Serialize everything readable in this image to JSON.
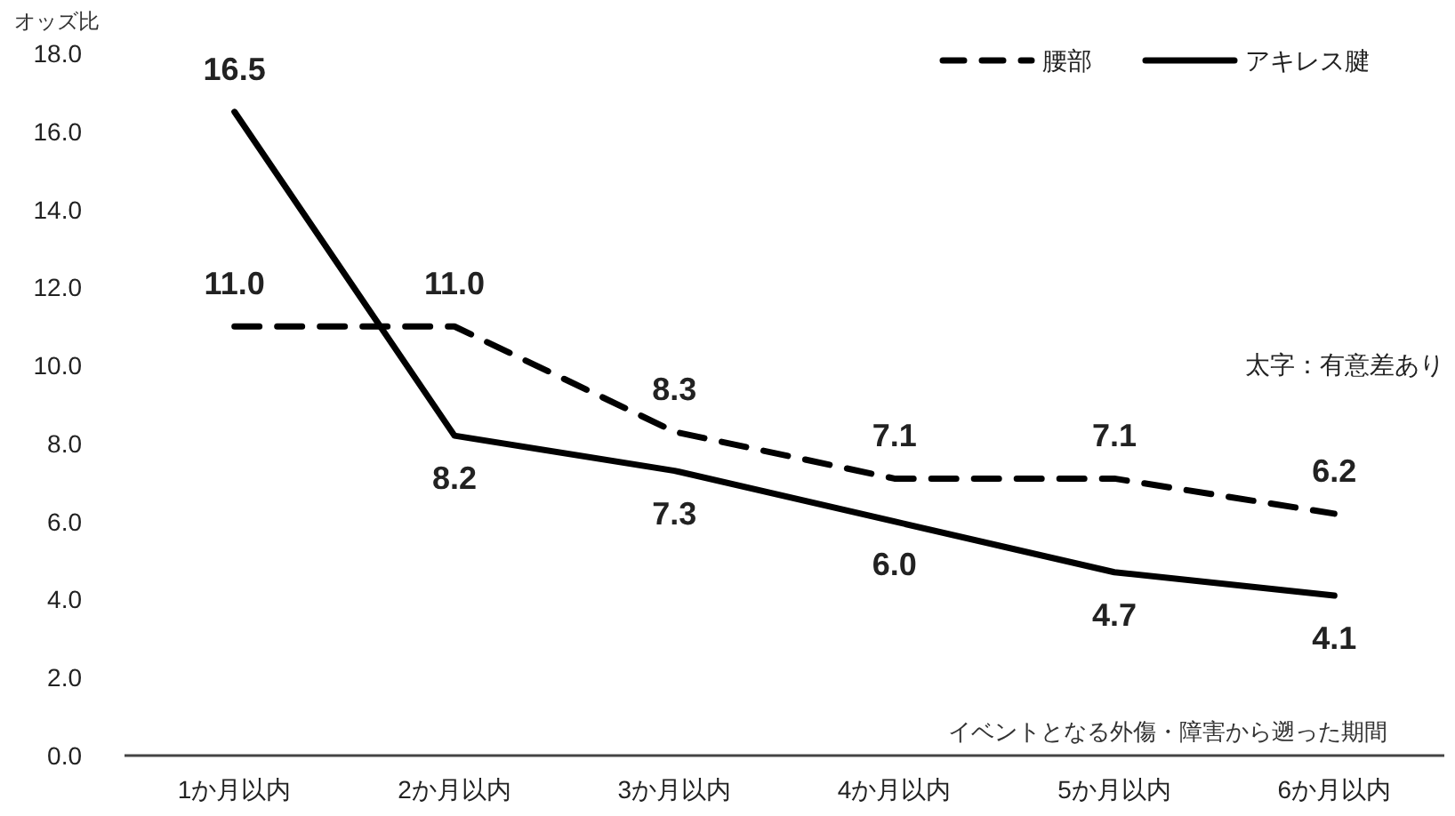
{
  "chart_data": {
    "type": "line",
    "ylabel": "オッズ比",
    "xlabel": "イベントとなる外傷・障害から遡った期間",
    "categories": [
      "1か月以内",
      "2か月以内",
      "3か月以内",
      "4か月以内",
      "5か月以内",
      "6か月以内"
    ],
    "series": [
      {
        "name": "腰部",
        "color": "#000000",
        "line_style": "dashed",
        "values": [
          11.0,
          11.0,
          8.3,
          7.1,
          7.1,
          6.2
        ],
        "value_labels": [
          "11.0",
          "11.0",
          "8.3",
          "7.1",
          "7.1",
          "6.2"
        ]
      },
      {
        "name": "アキレス腱",
        "color": "#000000",
        "line_style": "solid",
        "values": [
          16.5,
          8.2,
          7.3,
          6.0,
          4.7,
          4.1
        ],
        "value_labels": [
          "16.5",
          "8.2",
          "7.3",
          "6.0",
          "4.7",
          "4.1"
        ]
      }
    ],
    "ylim": [
      0,
      18
    ],
    "yticks": [
      {
        "value": 0,
        "label": "0.0"
      },
      {
        "value": 2,
        "label": "2.0"
      },
      {
        "value": 4,
        "label": "4.0"
      },
      {
        "value": 6,
        "label": "6.0"
      },
      {
        "value": 8,
        "label": "8.0"
      },
      {
        "value": 10,
        "label": "10.0"
      },
      {
        "value": 12,
        "label": "12.0"
      },
      {
        "value": 14,
        "label": "14.0"
      },
      {
        "value": 16,
        "label": "16.0"
      },
      {
        "value": 18,
        "label": "18.0"
      }
    ],
    "grid": false,
    "legend": "top right",
    "marker": "none",
    "annotations": [
      "太字：有意差あり"
    ]
  }
}
